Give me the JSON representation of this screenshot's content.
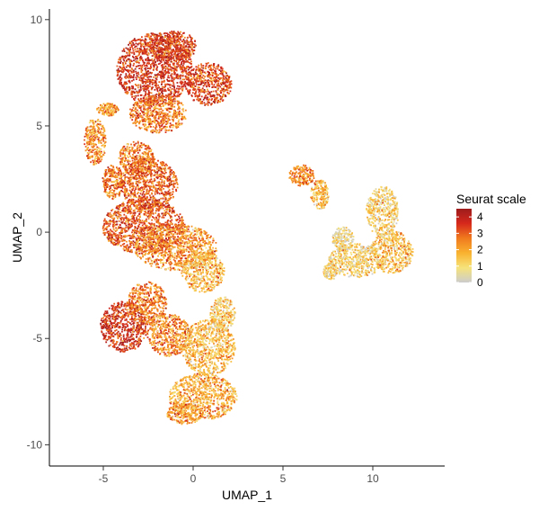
{
  "chart_data": {
    "type": "scatter",
    "title": "",
    "xlabel": "UMAP_1",
    "ylabel": "UMAP_2",
    "xlim": [
      -8,
      14
    ],
    "ylim": [
      -11,
      10.5
    ],
    "x_ticks": [
      "-5",
      "0",
      "5",
      "10"
    ],
    "y_ticks": [
      "-10",
      "-5",
      "0",
      "5",
      "10"
    ],
    "grid": false,
    "legend": {
      "title": "Seurat scale",
      "placement": "right",
      "range": [
        0,
        4.5
      ],
      "ticks": [
        "4",
        "3",
        "2",
        "1",
        "0"
      ],
      "colors": [
        "#cccccc",
        "#f6e37a",
        "#f9b230",
        "#f07a1e",
        "#d6281c",
        "#9e1c1c"
      ]
    },
    "clusters": [
      {
        "cx": -2.2,
        "cy": 7.7,
        "rx": 2.1,
        "ry": 1.7,
        "score": 3.6
      },
      {
        "cx": -1.2,
        "cy": 8.8,
        "rx": 1.4,
        "ry": 0.7,
        "score": 3.5
      },
      {
        "cx": 0.8,
        "cy": 7.0,
        "rx": 1.3,
        "ry": 1.0,
        "score": 3.3
      },
      {
        "cx": -2.0,
        "cy": 5.6,
        "rx": 1.6,
        "ry": 0.9,
        "score": 2.6
      },
      {
        "cx": -3.2,
        "cy": 3.5,
        "rx": 1.0,
        "ry": 0.8,
        "score": 2.5
      },
      {
        "cx": -5.5,
        "cy": 4.3,
        "rx": 0.6,
        "ry": 1.1,
        "score": 2.3
      },
      {
        "cx": -4.8,
        "cy": 5.8,
        "rx": 0.6,
        "ry": 0.3,
        "score": 2.2
      },
      {
        "cx": -4.5,
        "cy": 2.4,
        "rx": 0.6,
        "ry": 0.8,
        "score": 2.6
      },
      {
        "cx": -2.5,
        "cy": 2.3,
        "rx": 1.6,
        "ry": 1.2,
        "score": 3.0
      },
      {
        "cx": -2.8,
        "cy": 0.3,
        "rx": 2.3,
        "ry": 1.3,
        "score": 3.1
      },
      {
        "cx": -1.0,
        "cy": -0.7,
        "rx": 2.3,
        "ry": 1.1,
        "score": 2.3
      },
      {
        "cx": 0.5,
        "cy": -1.8,
        "rx": 1.2,
        "ry": 1.0,
        "score": 1.6
      },
      {
        "cx": -3.9,
        "cy": -4.4,
        "rx": 1.3,
        "ry": 1.2,
        "score": 3.7
      },
      {
        "cx": -2.6,
        "cy": -3.3,
        "rx": 1.1,
        "ry": 1.0,
        "score": 2.6
      },
      {
        "cx": -1.4,
        "cy": -4.8,
        "rx": 1.2,
        "ry": 1.0,
        "score": 2.4
      },
      {
        "cx": 0.8,
        "cy": -5.4,
        "rx": 1.5,
        "ry": 1.3,
        "score": 1.6
      },
      {
        "cx": 0.5,
        "cy": -7.7,
        "rx": 1.9,
        "ry": 1.1,
        "score": 1.9
      },
      {
        "cx": -0.5,
        "cy": -8.5,
        "rx": 1.0,
        "ry": 0.5,
        "score": 2.0
      },
      {
        "cx": 1.6,
        "cy": -3.8,
        "rx": 0.7,
        "ry": 0.8,
        "score": 1.2
      },
      {
        "cx": 6.0,
        "cy": 2.7,
        "rx": 0.7,
        "ry": 0.5,
        "score": 2.4
      },
      {
        "cx": 7.0,
        "cy": 1.8,
        "rx": 0.5,
        "ry": 0.7,
        "score": 1.6
      },
      {
        "cx": 8.3,
        "cy": -0.3,
        "rx": 0.6,
        "ry": 0.6,
        "score": 0.6
      },
      {
        "cx": 9.0,
        "cy": -1.3,
        "rx": 1.5,
        "ry": 0.8,
        "score": 1.0
      },
      {
        "cx": 11.0,
        "cy": -0.9,
        "rx": 1.2,
        "ry": 1.0,
        "score": 1.5
      },
      {
        "cx": 10.5,
        "cy": 1.0,
        "rx": 0.9,
        "ry": 1.2,
        "score": 1.0
      },
      {
        "cx": 7.6,
        "cy": -1.8,
        "rx": 0.4,
        "ry": 0.4,
        "score": 1.0
      }
    ]
  }
}
